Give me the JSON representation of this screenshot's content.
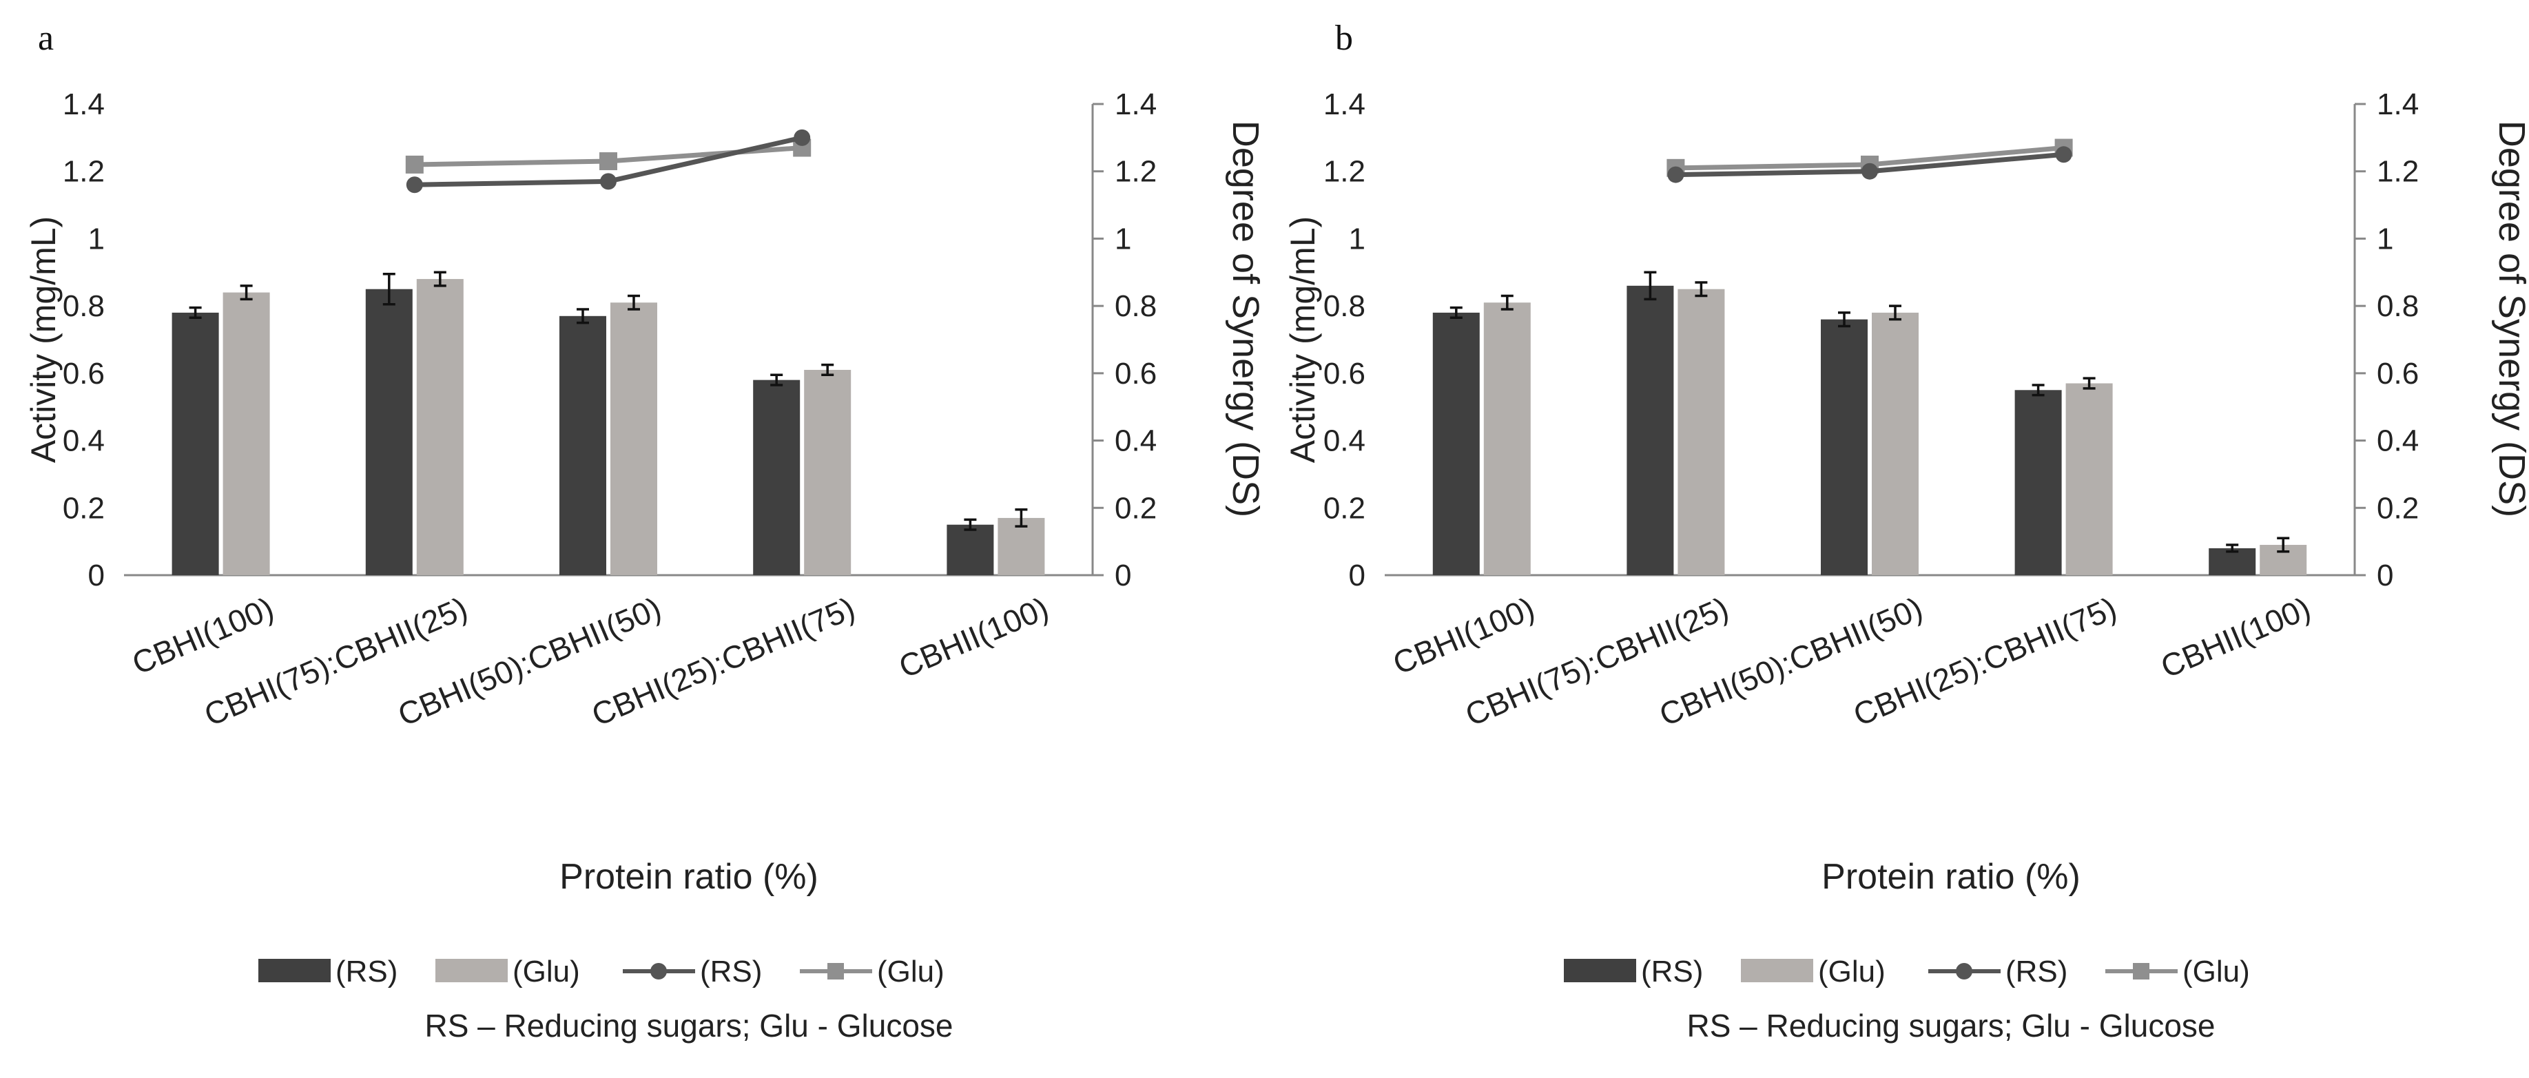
{
  "chart_data": [
    {
      "panel_label": "a",
      "type": "bar",
      "categories": [
        "CBHI(100)",
        "CBHI(75):CBHII(25)",
        "CBHI(50):CBHII(50)",
        "CBHI(25):CBHII(75)",
        "CBHII(100)"
      ],
      "xlabel": "Protein ratio (%)",
      "ylabel": "Activity (mg/mL)",
      "y2label": "Degree of Synergy (DS)",
      "ylim": [
        0,
        1.4
      ],
      "y2lim": [
        0,
        1.4
      ],
      "yticks": [
        "0",
        "0.2",
        "0.4",
        "0.6",
        "0.8",
        "1",
        "1.2",
        "1.4"
      ],
      "y2ticks": [
        "0",
        "0.2",
        "0.4",
        "0.6",
        "0.8",
        "1",
        "1.2",
        "1.4"
      ],
      "bar_series": [
        {
          "name": "(RS)",
          "color": "#404040",
          "values": [
            0.78,
            0.85,
            0.77,
            0.58,
            0.15
          ],
          "errors": [
            0.015,
            0.045,
            0.02,
            0.015,
            0.015
          ]
        },
        {
          "name": "(Glu)",
          "color": "#b3afac",
          "values": [
            0.84,
            0.88,
            0.81,
            0.61,
            0.17
          ],
          "errors": [
            0.02,
            0.02,
            0.02,
            0.015,
            0.025
          ]
        }
      ],
      "line_series": [
        {
          "name": "(RS)",
          "color": "#555555",
          "marker": "circle",
          "values": [
            null,
            1.16,
            1.17,
            1.3,
            null
          ]
        },
        {
          "name": "(Glu)",
          "color": "#8f8f8f",
          "marker": "square",
          "values": [
            null,
            1.22,
            1.23,
            1.27,
            null
          ]
        }
      ],
      "note": "RS – Reducing sugars; Glu - Glucose"
    },
    {
      "panel_label": "b",
      "type": "bar",
      "categories": [
        "CBHI(100)",
        "CBHI(75):CBHII(25)",
        "CBHI(50):CBHII(50)",
        "CBHI(25):CBHII(75)",
        "CBHII(100)"
      ],
      "xlabel": "Protein ratio (%)",
      "ylabel": "Activity (mg/mL)",
      "y2label": "Degree of Synergy (DS)",
      "ylim": [
        0,
        1.4
      ],
      "y2lim": [
        0,
        1.4
      ],
      "yticks": [
        "0",
        "0.2",
        "0.4",
        "0.6",
        "0.8",
        "1",
        "1.2",
        "1.4"
      ],
      "y2ticks": [
        "0",
        "0.2",
        "0.4",
        "0.6",
        "0.8",
        "1",
        "1.2",
        "1.4"
      ],
      "bar_series": [
        {
          "name": "(RS)",
          "color": "#404040",
          "values": [
            0.78,
            0.86,
            0.76,
            0.55,
            0.08
          ],
          "errors": [
            0.015,
            0.04,
            0.02,
            0.015,
            0.01
          ]
        },
        {
          "name": "(Glu)",
          "color": "#b3afac",
          "values": [
            0.81,
            0.85,
            0.78,
            0.57,
            0.09
          ],
          "errors": [
            0.02,
            0.02,
            0.02,
            0.015,
            0.02
          ]
        }
      ],
      "line_series": [
        {
          "name": "(RS)",
          "color": "#555555",
          "marker": "circle",
          "values": [
            null,
            1.19,
            1.2,
            1.25,
            null
          ]
        },
        {
          "name": "(Glu)",
          "color": "#8f8f8f",
          "marker": "square",
          "values": [
            null,
            1.21,
            1.22,
            1.27,
            null
          ]
        }
      ],
      "note": "RS – Reducing sugars; Glu - Glucose"
    }
  ]
}
